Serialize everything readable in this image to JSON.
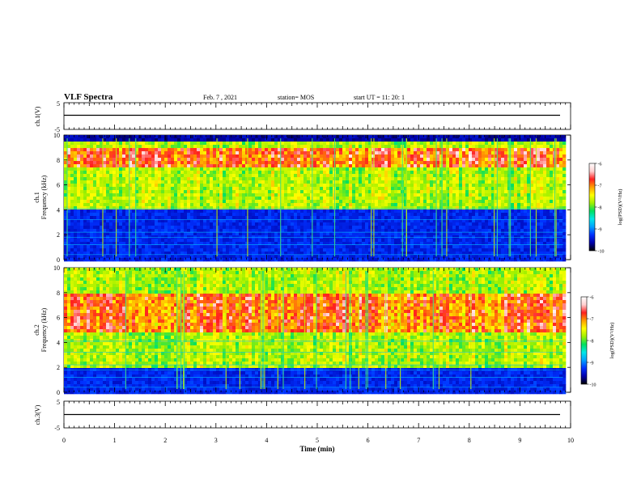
{
  "header": {
    "title": "VLF Spectra",
    "date": "Feb. 7 , 2021",
    "station": "station= MOS",
    "start": "start  UT =    11: 20: 1"
  },
  "panels": {
    "ch1_wave": {
      "ylabel": "ch.1(V)",
      "yticks": [
        "5",
        "-5"
      ]
    },
    "ch1_spec": {
      "ylabel1": "ch.1",
      "ylabel2": "Frequency (kHz)"
    },
    "ch2_spec": {
      "ylabel1": "ch.2",
      "ylabel2": "Frequency (kHz)"
    },
    "ch3_wave": {
      "ylabel": "ch.3(V)",
      "yticks": [
        "5",
        "-5"
      ]
    }
  },
  "colorbar": {
    "label": "log(PSD)(V²/Hz)",
    "ticks": [
      "-6",
      "-7",
      "-8",
      "-9",
      "-10"
    ],
    "range": [
      -10,
      -6
    ],
    "colors": [
      "#000000",
      "#0000aa",
      "#0030ff",
      "#00a0ff",
      "#00e8e8",
      "#00e060",
      "#a0f000",
      "#ffff00",
      "#ffa000",
      "#ff2020",
      "#ffd0d0",
      "#ffffff"
    ]
  },
  "xaxis": {
    "label": "Time (min)",
    "ticks": [
      "0",
      "1",
      "2",
      "3",
      "4",
      "5",
      "6",
      "7",
      "8",
      "9",
      "10"
    ]
  },
  "chart_data": [
    {
      "type": "line",
      "panel": "ch.1(V)",
      "ylim": [
        -5,
        5
      ],
      "xlim": [
        0,
        10
      ],
      "x": [
        0,
        9.85
      ],
      "y": [
        0,
        0
      ]
    },
    {
      "type": "heatmap",
      "panel": "ch.1",
      "xlabel": "Time (min)",
      "ylabel": "Frequency (kHz)",
      "xlim": [
        0,
        10
      ],
      "ylim": [
        0,
        10
      ],
      "yticks": [
        0,
        2,
        4,
        6,
        8,
        10
      ],
      "data_extent_min": 9.85,
      "colorbar_range": [
        -10,
        -6
      ],
      "intense_band_khz": [
        4,
        9.5
      ],
      "peak_band_khz": [
        7.5,
        9
      ]
    },
    {
      "type": "heatmap",
      "panel": "ch.2",
      "xlabel": "Time (min)",
      "ylabel": "Frequency (kHz)",
      "xlim": [
        0,
        10
      ],
      "ylim": [
        0,
        10
      ],
      "yticks": [
        0,
        2,
        4,
        6,
        8,
        10
      ],
      "data_extent_min": 9.85,
      "colorbar_range": [
        -10,
        -6
      ],
      "intense_band_khz": [
        2,
        10
      ],
      "peak_band_khz": [
        5,
        8
      ]
    },
    {
      "type": "line",
      "panel": "ch.3(V)",
      "ylim": [
        -5,
        5
      ],
      "xlim": [
        0,
        10
      ],
      "x": [
        0,
        9.85
      ],
      "y": [
        0,
        0
      ]
    }
  ]
}
